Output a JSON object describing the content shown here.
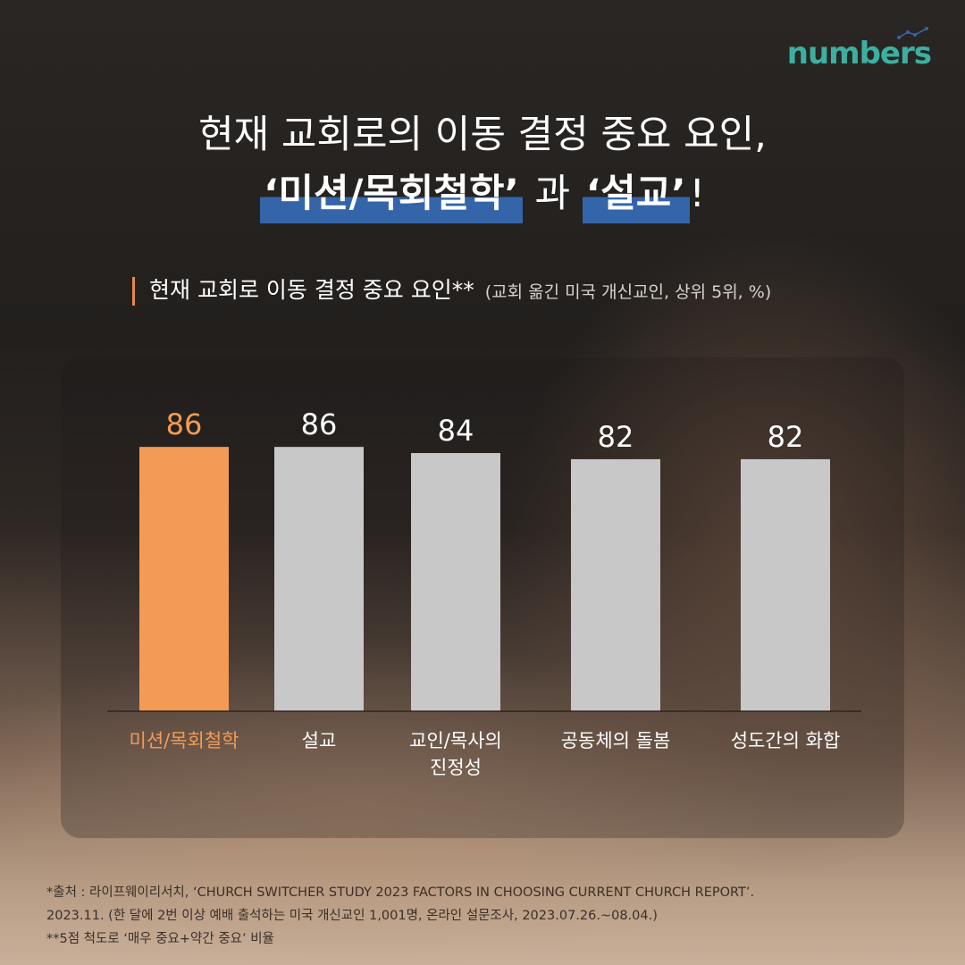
{
  "brand": {
    "logo_text": "numbers",
    "accent_color": "#3cb0a0"
  },
  "headline": {
    "line1": "현재 교회로의 이동 결정 중요 요인,",
    "highlight1": "‘미션/목회철학’",
    "middle": " 과 ",
    "highlight2": "‘설교’",
    "end": "!"
  },
  "subtitle": {
    "text": "현재 교회로 이동 결정 중요 요인**",
    "note": "(교회 옮긴 미국 개신교인, 상위 5위, %)"
  },
  "chart_data": {
    "type": "bar",
    "categories": [
      "미션/목회철학",
      "설교",
      "교인/목사의\n진정성",
      "공동체의 돌봄",
      "성도간의 화합"
    ],
    "values": [
      86,
      86,
      84,
      82,
      82
    ],
    "highlight_index": 0,
    "colors": {
      "highlight": "#f39b55",
      "default": "#c8c8c8",
      "highlight_label": "#f39b55",
      "label": "#ffffff"
    },
    "grid": false
  },
  "source": {
    "line1": "*출처 : 라이프웨이리서치, ‘CHURCH SWITCHER STUDY 2023 FACTORS IN CHOOSING CURRENT CHURCH REPORT’.",
    "line2": "  2023.11. (한 달에 2번 이상 예배 출석하는 미국 개신교인 1,001명, 온라인 설문조사, 2023.07.26.~08.04.)",
    "line3": "**5점 척도로 ‘매우 중요+약간 중요’ 비율"
  }
}
